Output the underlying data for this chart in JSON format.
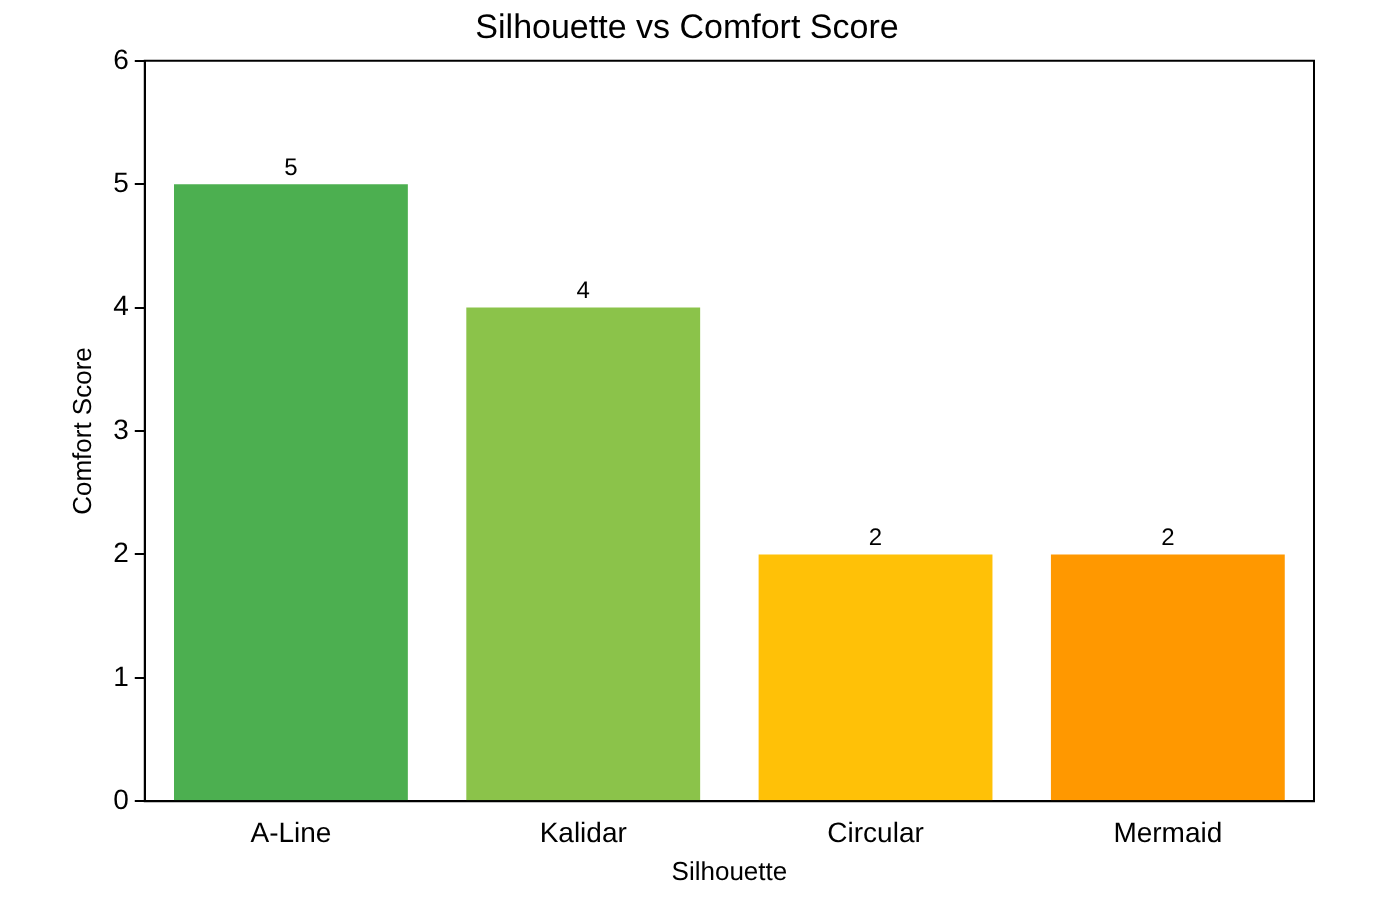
{
  "chart_data": {
    "type": "bar",
    "title": "Silhouette vs Comfort Score",
    "xlabel": "Silhouette",
    "ylabel": "Comfort Score",
    "categories": [
      "A-Line",
      "Kalidar",
      "Circular",
      "Mermaid"
    ],
    "values": [
      5,
      4,
      2,
      2
    ],
    "colors": [
      "#4caf50",
      "#8bc34a",
      "#ffc107",
      "#ff9800"
    ],
    "ylim": [
      0,
      6
    ],
    "yticks": [
      0,
      1,
      2,
      3,
      4,
      5,
      6
    ],
    "grid": false,
    "legend": false,
    "data_labels": true
  }
}
